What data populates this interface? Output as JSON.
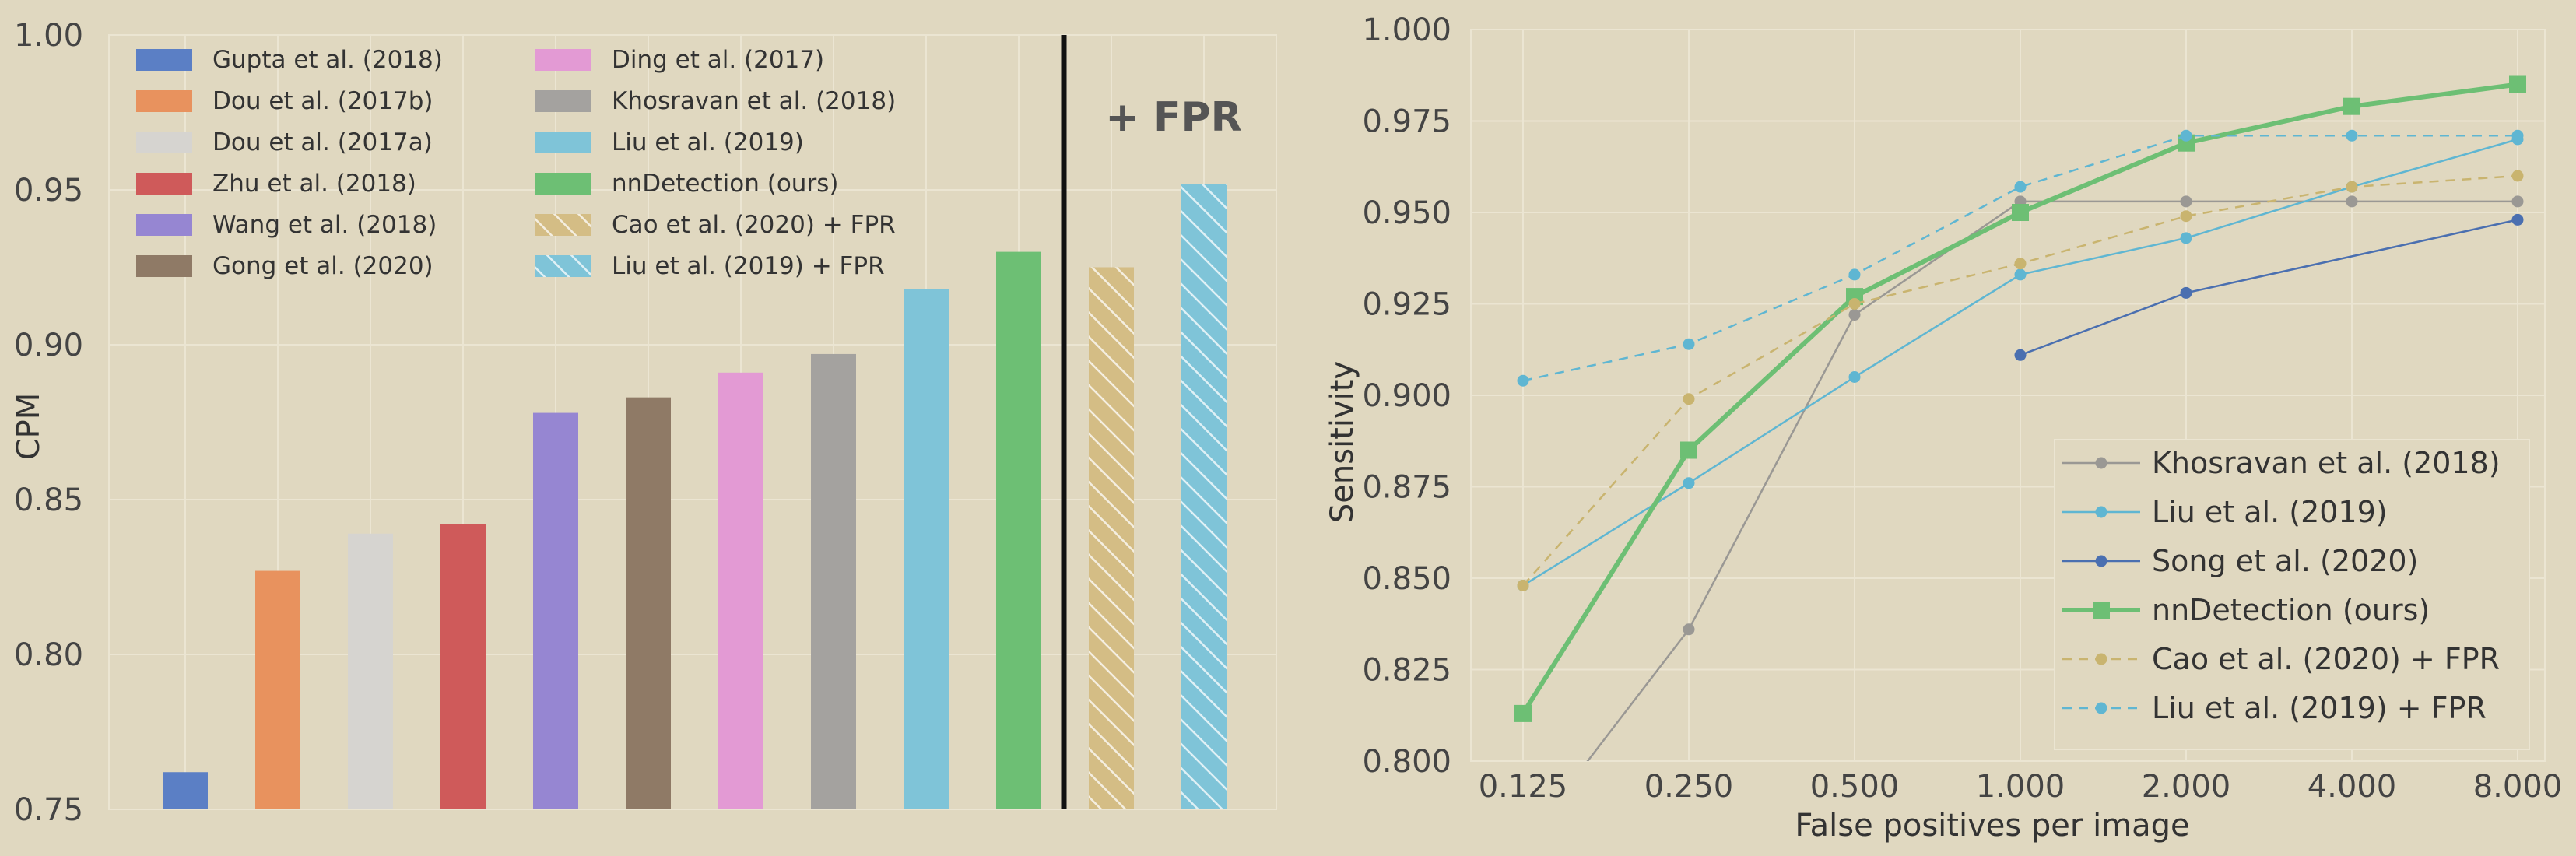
{
  "chart_data": [
    {
      "type": "bar",
      "ylabel": "CPM",
      "ylim": [
        0.75,
        1.0
      ],
      "yticks": [
        "0.75",
        "0.80",
        "0.85",
        "0.90",
        "0.95",
        "1.00"
      ],
      "annotation": "+ FPR",
      "grid": true,
      "legend_position": "top-left",
      "bars": [
        {
          "name": "Gupta et al. (2018)",
          "value": 0.762,
          "color": "#5b7fc5",
          "hatched": false
        },
        {
          "name": "Dou et al. (2017b)",
          "value": 0.827,
          "color": "#e8925e",
          "hatched": false
        },
        {
          "name": "Dou et al. (2017a)",
          "value": 0.839,
          "color": "#d6d4d0",
          "hatched": false
        },
        {
          "name": "Zhu et al. (2018)",
          "value": 0.842,
          "color": "#cf5a5a",
          "hatched": false
        },
        {
          "name": "Wang et al. (2018)",
          "value": 0.878,
          "color": "#9686d2",
          "hatched": false
        },
        {
          "name": "Gong et al. (2020)",
          "value": 0.883,
          "color": "#8f7a66",
          "hatched": false
        },
        {
          "name": "Ding et al. (2017)",
          "value": 0.891,
          "color": "#e39ad4",
          "hatched": false
        },
        {
          "name": "Khosravan et al. (2018)",
          "value": 0.897,
          "color": "#a4a29f",
          "hatched": false
        },
        {
          "name": "Liu et al. (2019)",
          "value": 0.918,
          "color": "#7fc4d8",
          "hatched": false
        },
        {
          "name": "nnDetection (ours)",
          "value": 0.93,
          "color": "#6dbf74",
          "hatched": false
        },
        {
          "name": "Cao et al. (2020) + FPR",
          "value": 0.925,
          "color": "#d4bd85",
          "hatched": true
        },
        {
          "name": "Liu et al. (2019) + FPR",
          "value": 0.952,
          "color": "#7fc4d8",
          "hatched": true
        }
      ]
    },
    {
      "type": "line",
      "xlabel": "False positives per image",
      "ylabel": "Sensitivity",
      "xscale": "log2",
      "x": [
        0.125,
        0.25,
        0.5,
        1.0,
        2.0,
        4.0,
        8.0
      ],
      "xticks": [
        "0.125",
        "0.250",
        "0.500",
        "1.000",
        "2.000",
        "4.000",
        "8.000"
      ],
      "ylim": [
        0.8,
        1.0
      ],
      "yticks": [
        "0.800",
        "0.825",
        "0.850",
        "0.875",
        "0.900",
        "0.925",
        "0.950",
        "0.975",
        "1.000"
      ],
      "grid": true,
      "legend_position": "bottom-right",
      "series": [
        {
          "name": "Khosravan et al. (2018)",
          "color": "#9a9894",
          "style": "solid",
          "marker": "circle",
          "values": [
            0.777,
            0.836,
            0.922,
            0.953,
            0.953,
            0.953,
            0.953
          ]
        },
        {
          "name": "Liu et al. (2019)",
          "color": "#5fb6d2",
          "style": "solid",
          "marker": "circle",
          "values": [
            0.848,
            0.876,
            0.905,
            0.933,
            0.943,
            0.957,
            0.97
          ]
        },
        {
          "name": "Song et al. (2020)",
          "color": "#4a6fb0",
          "style": "solid",
          "marker": "circle",
          "values": [
            null,
            null,
            null,
            0.911,
            0.928,
            null,
            0.948
          ]
        },
        {
          "name": "nnDetection (ours)",
          "color": "#6dbf74",
          "style": "solid-thick",
          "marker": "square",
          "values": [
            0.813,
            0.885,
            0.927,
            0.95,
            0.969,
            0.979,
            0.985
          ]
        },
        {
          "name": "Cao et al. (2020) + FPR",
          "color": "#c9b46f",
          "style": "dashed",
          "marker": "circle",
          "values": [
            0.848,
            0.899,
            0.925,
            0.936,
            0.949,
            0.957,
            0.96
          ]
        },
        {
          "name": "Liu et al. (2019) + FPR",
          "color": "#5fb6d2",
          "style": "dashed",
          "marker": "circle",
          "values": [
            0.904,
            0.914,
            0.933,
            0.957,
            0.971,
            0.971,
            0.971
          ]
        }
      ]
    }
  ]
}
